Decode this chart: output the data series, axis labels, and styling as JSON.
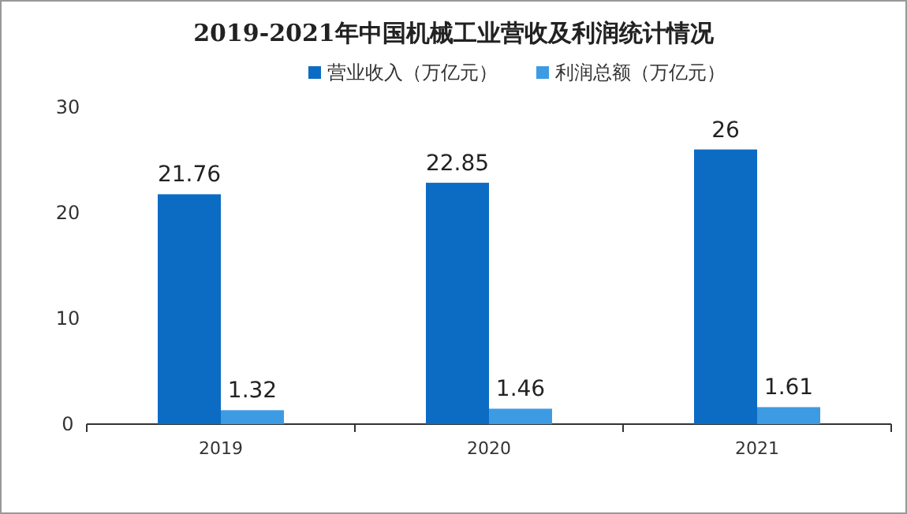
{
  "chart_data": {
    "type": "bar",
    "title": "2019-2021年中国机械工业营收及利润统计情况",
    "categories": [
      "2019",
      "2020",
      "2021"
    ],
    "series": [
      {
        "name": "营业收入（万亿元）",
        "color": "#0c6cc4",
        "values": [
          21.76,
          22.85,
          26
        ]
      },
      {
        "name": "利润总额（万亿元）",
        "color": "#3d9be3",
        "values": [
          1.32,
          1.46,
          1.61
        ]
      }
    ],
    "ylim": [
      0,
      30
    ],
    "yticks": [
      0,
      10,
      20,
      30
    ],
    "data_labels": true,
    "legend": "top"
  }
}
